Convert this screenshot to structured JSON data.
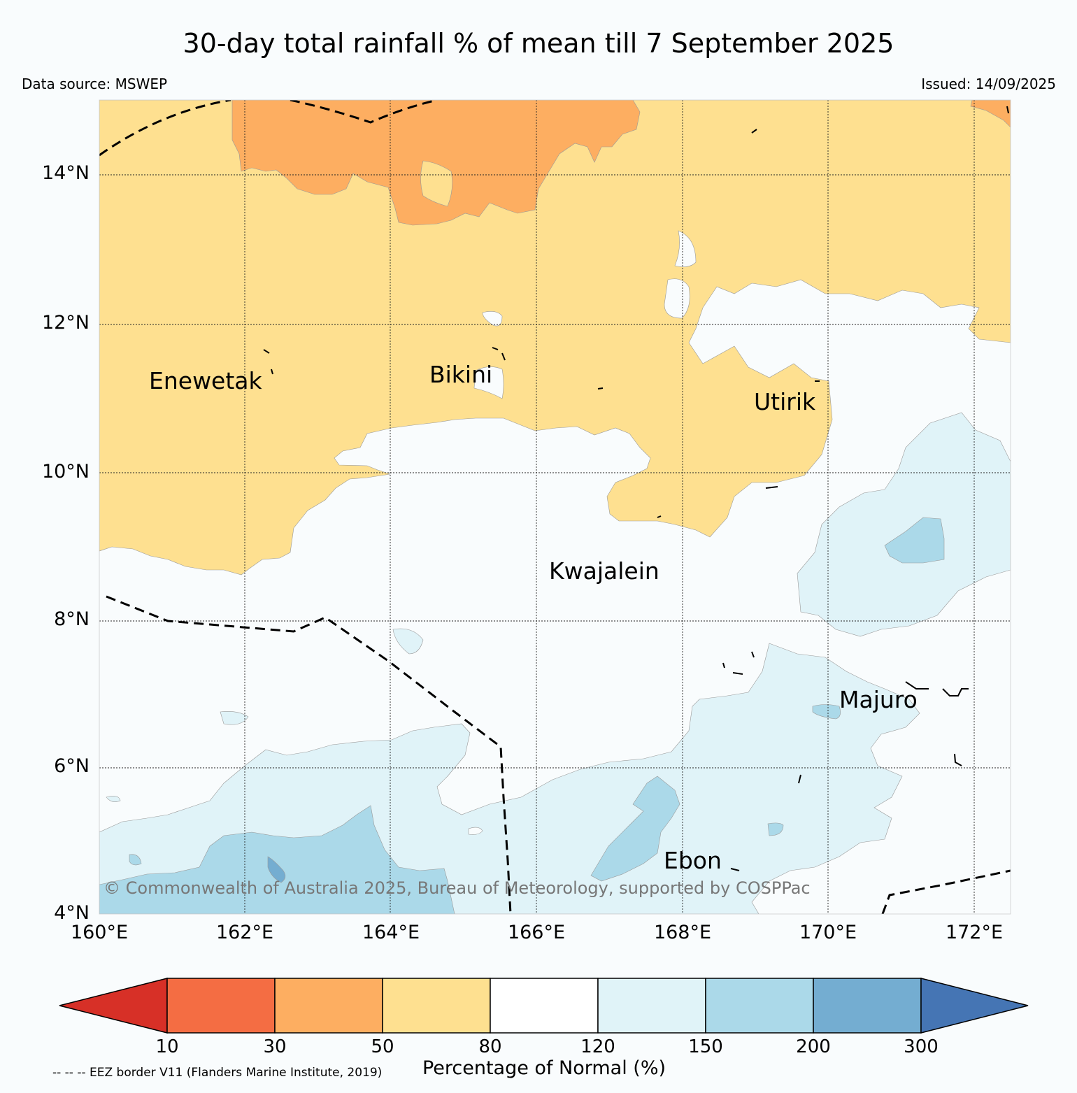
{
  "title": "30-day total rainfall % of mean till 7 September 2025",
  "data_source": "Data source: MSWEP",
  "issued": "Issued: 14/09/2025",
  "latitude_labels": [
    "14°N",
    "12°N",
    "10°N",
    "8°N",
    "6°N",
    "4°N"
  ],
  "longitude_labels": [
    "160°E",
    "162°E",
    "164°E",
    "166°E",
    "168°E",
    "170°E",
    "172°E"
  ],
  "places": [
    "Enewetak",
    "Bikini",
    "Utirik",
    "Kwajalein",
    "Majuro",
    "Ebon"
  ],
  "copyright": "© Commonwealth of Australia 2025, Bureau of Meteorology, supported by COSPPac",
  "colorbar": {
    "ticks": [
      "10",
      "30",
      "50",
      "80",
      "120",
      "150",
      "200",
      "300"
    ],
    "title": "Percentage of Normal (%)",
    "colors": {
      "under_10": "#d73027",
      "10_30": "#f46d43",
      "30_50": "#fdae61",
      "50_80": "#fee090",
      "80_120": "#ffffff",
      "120_150": "#e0f3f8",
      "150_200": "#abd9e9",
      "200_300": "#74add1",
      "over_300": "#4575b4"
    }
  },
  "eez_note": "-- -- -- EEZ border V11 (Flanders Marine Institute, 2019)"
}
